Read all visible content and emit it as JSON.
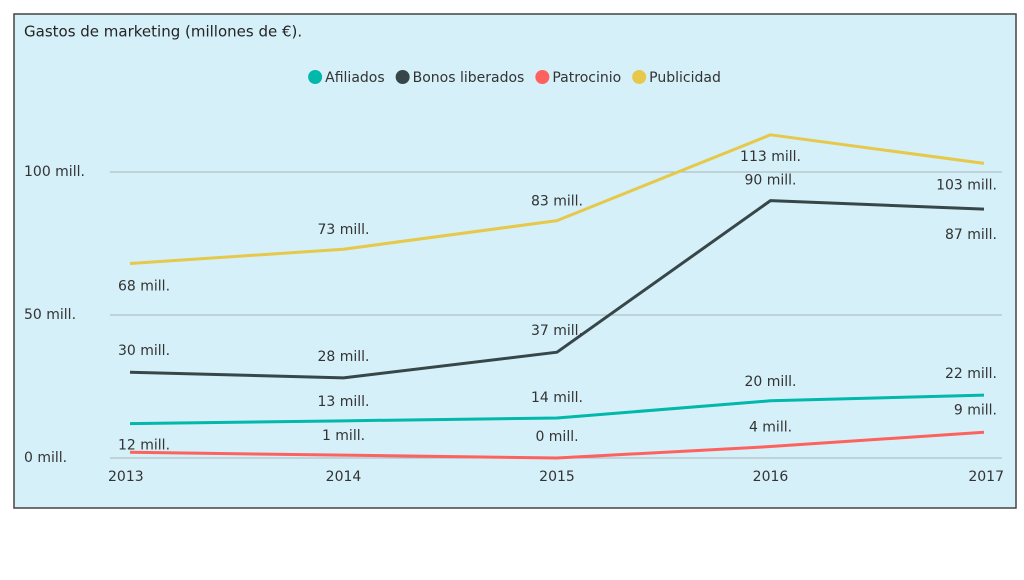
{
  "chart_data": {
    "type": "line",
    "title": "Gastos de marketing (millones de €).",
    "categories": [
      "2013",
      "2014",
      "2015",
      "2016",
      "2017"
    ],
    "series": [
      {
        "name": "Afiliados",
        "color": "#01b8aa",
        "values": [
          12,
          13,
          14,
          20,
          22
        ],
        "value_labels": [
          "12 mill.",
          "13 mill.",
          "14 mill.",
          "20 mill.",
          "22 mill."
        ]
      },
      {
        "name": "Bonos liberados",
        "color": "#374649",
        "values": [
          30,
          28,
          37,
          90,
          87
        ],
        "value_labels": [
          "30 mill.",
          "28 mill.",
          "37 mill.",
          "90 mill.",
          "87 mill."
        ]
      },
      {
        "name": "Patrocinio",
        "color": "#fd625e",
        "values": [
          2,
          1,
          0,
          4,
          9
        ],
        "value_labels": [
          null,
          "1 mill.",
          "0 mill.",
          "4 mill.",
          "9 mill."
        ]
      },
      {
        "name": "Publicidad",
        "color": "#e6c84a",
        "values": [
          68,
          73,
          83,
          113,
          103
        ],
        "value_labels": [
          "68 mill.",
          "73 mill.",
          "83 mill.",
          "113 mill.",
          "103 mill."
        ]
      }
    ],
    "ylim": [
      0,
      120
    ],
    "yticks": [
      {
        "value": 0,
        "label": "0 mill."
      },
      {
        "value": 50,
        "label": "50 mill."
      },
      {
        "value": 100,
        "label": "100 mill."
      }
    ],
    "grid": true,
    "legend": "top"
  }
}
